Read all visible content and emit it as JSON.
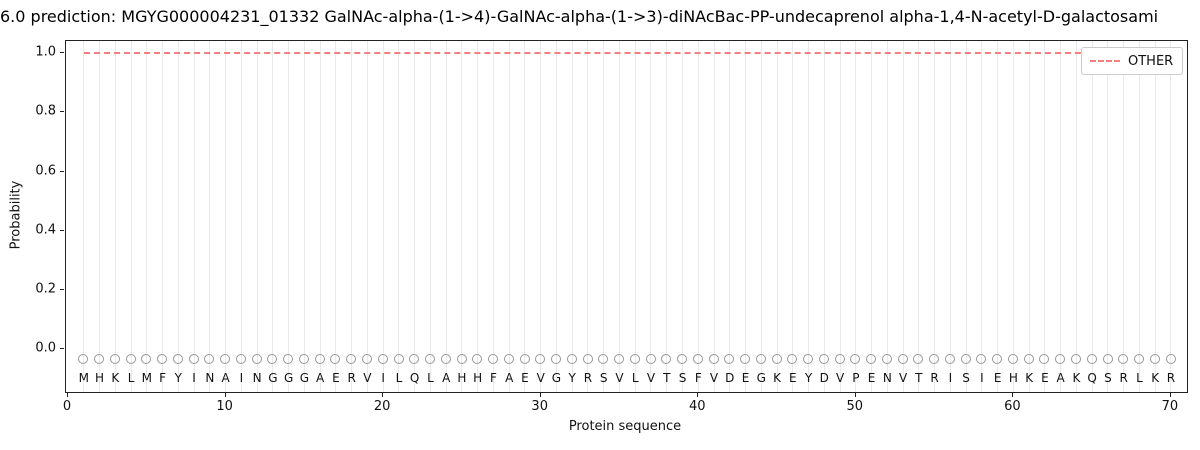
{
  "chart_data": {
    "type": "line",
    "title": "6.0 prediction: MGYG000004231_01332 GalNAc-alpha-(1->4)-GalNAc-alpha-(1->3)-diNAcBac-PP-undecaprenol alpha-1,4-N-acetyl-D-galactosami",
    "xlabel": "Protein sequence",
    "ylabel": "Probability",
    "xlim": [
      -0.13,
      71.02
    ],
    "ylim": [
      -0.145,
      1.041
    ],
    "x_ticks": [
      0,
      10,
      20,
      30,
      40,
      50,
      60,
      70
    ],
    "y_ticks": [
      0.0,
      0.2,
      0.4,
      0.6,
      0.8,
      1.0
    ],
    "grid": "vertical line at every residue position",
    "legend": {
      "position": "upper right",
      "entries": [
        {
          "label": "OTHER",
          "color": "#f57f7f",
          "style": "dashed"
        }
      ]
    },
    "series": [
      {
        "name": "OTHER",
        "style": "dashed",
        "color": "#f57f7f",
        "description": "horizontal dashed line, constant probability",
        "x_start": 1,
        "x_end": 70,
        "value": 1.0
      }
    ],
    "sequence": [
      "M",
      "H",
      "K",
      "L",
      "M",
      "F",
      "Y",
      "I",
      "N",
      "A",
      "I",
      "N",
      "G",
      "G",
      "G",
      "A",
      "E",
      "R",
      "V",
      "I",
      "L",
      "Q",
      "L",
      "A",
      "H",
      "H",
      "F",
      "A",
      "E",
      "V",
      "G",
      "Y",
      "R",
      "S",
      "V",
      "L",
      "V",
      "T",
      "S",
      "F",
      "V",
      "D",
      "E",
      "G",
      "K",
      "E",
      "Y",
      "D",
      "V",
      "P",
      "E",
      "N",
      "V",
      "T",
      "R",
      "I",
      "S",
      "I",
      "E",
      "H",
      "K",
      "E",
      "A",
      "K",
      "Q",
      "S",
      "R",
      "L",
      "K",
      "R"
    ],
    "marker": {
      "shape": "open-circle",
      "color": "#999999",
      "y_value": -0.034
    },
    "letter_y_value": -0.098,
    "colors": {
      "hline": "#f57f7f",
      "grid": "#e9e9e9",
      "marker": "#999999",
      "spine": "#222222",
      "text": "#000000"
    }
  }
}
